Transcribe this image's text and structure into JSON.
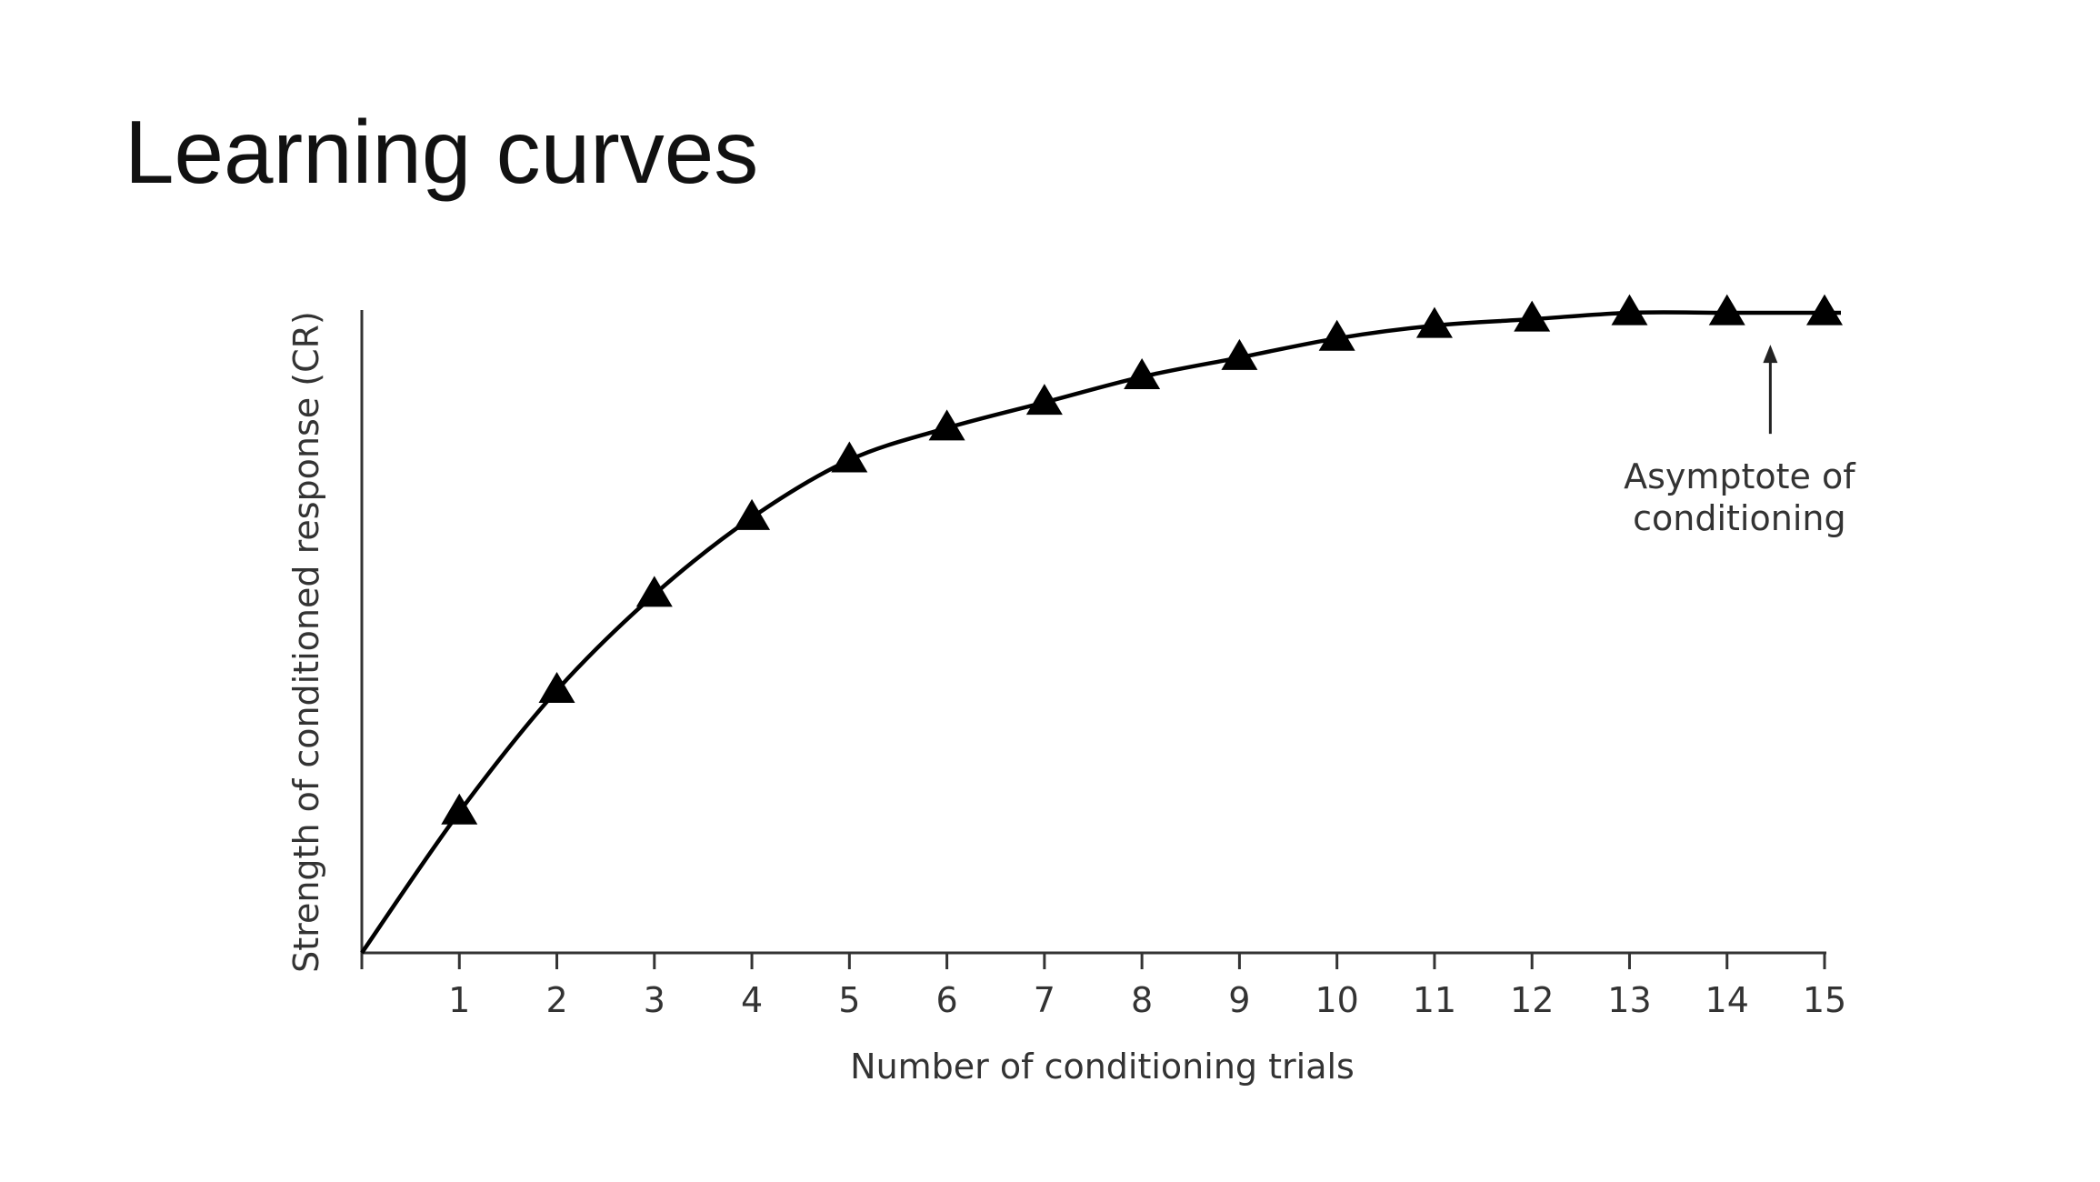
{
  "slide": {
    "title": "Learning curves"
  },
  "chart_data": {
    "type": "line",
    "title": "",
    "xlabel": "Number of conditioning trials",
    "ylabel": "Strength of conditioned response (CR)",
    "x": [
      1,
      2,
      3,
      4,
      5,
      6,
      7,
      8,
      9,
      10,
      11,
      12,
      13,
      14,
      15
    ],
    "x_tick_labels": [
      "1",
      "2",
      "3",
      "4",
      "5",
      "6",
      "7",
      "8",
      "9",
      "10",
      "11",
      "12",
      "13",
      "14",
      "15"
    ],
    "series": [
      {
        "values": [
          0.22,
          0.41,
          0.56,
          0.68,
          0.77,
          0.82,
          0.86,
          0.9,
          0.93,
          0.96,
          0.98,
          0.99,
          1.0,
          1.0,
          1.0
        ],
        "marker": "triangle",
        "color": "#000000"
      }
    ],
    "xlim": [
      0,
      15
    ],
    "ylim": [
      0,
      1.0
    ],
    "y_tick_labels": false,
    "grid": false,
    "annotations": [
      {
        "text_lines": [
          "Asymptote of",
          "conditioning"
        ],
        "arrow_to_x": 14.5,
        "arrow_to_y": 0.97
      }
    ]
  }
}
